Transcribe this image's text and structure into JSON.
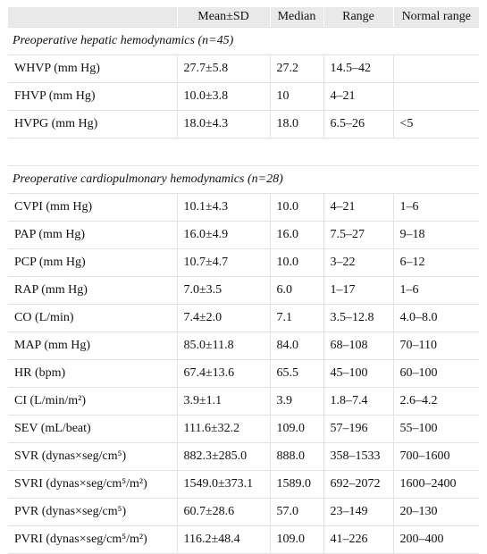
{
  "table": {
    "header": [
      "Mean±SD",
      "Median",
      "Range",
      "Normal range"
    ],
    "sections": [
      {
        "title": "Preoperative hepatic hemodynamics (n=45)",
        "rows": [
          [
            "WHVP (mm Hg)",
            "27.7±5.8",
            "27.2",
            "14.5–42"
          ],
          [
            "FHVP (mm Hg)",
            "10.0±3.8",
            "10",
            "4–21"
          ],
          [
            "HVPG (mm Hg)",
            "18.0±4.3",
            "18.0",
            "6.5–26",
            "<5"
          ]
        ]
      },
      {
        "title": "Preoperative cardiopulmonary hemodynamics (n=28)",
        "rows": [
          [
            "CVPI (mm Hg)",
            "10.1±4.3",
            "10.0",
            "4–21",
            "1–6"
          ],
          [
            "PAP (mm Hg)",
            "16.0±4.9",
            "16.0",
            "7.5–27",
            "9–18"
          ],
          [
            "PCP (mm Hg)",
            "10.7±4.7",
            "10.0",
            "3–22",
            "6–12"
          ],
          [
            "RAP (mm Hg)",
            "7.0±3.5",
            "6.0",
            "1–17",
            "1–6"
          ],
          [
            "CO (L/min)",
            "7.4±2.0",
            "7.1",
            "3.5–12.8",
            "4.0–8.0"
          ],
          [
            "MAP (mm Hg)",
            "85.0±11.8",
            "84.0",
            "68–108",
            "70–110"
          ],
          [
            "HR (bpm)",
            "67.4±13.6",
            "65.5",
            "45–100",
            "60–100"
          ],
          [
            "CI (L/min/m²)",
            "3.9±1.1",
            "3.9",
            "1.8–7.4",
            "2.6–4.2"
          ],
          [
            "SEV (mL/beat)",
            "111.6±32.2",
            "109.0",
            "57–196",
            "55–100"
          ],
          [
            "SVR (dynas×seg/cm⁵)",
            "882.3±285.0",
            "888.0",
            "358–1533",
            "700–1600"
          ],
          [
            "SVRI (dynas×seg/cm⁵/m²)",
            "1549.0±373.1",
            "1589.0",
            "692–2072",
            "1600–2400"
          ],
          [
            "PVR (dynas×seg/cm⁵)",
            "60.7±28.6",
            "57.0",
            "23–149",
            "20–130"
          ],
          [
            "PVRI (dynas×seg/cm⁵/m²)",
            "116.2±48.4",
            "109.0",
            "41–226",
            "200–400"
          ]
        ]
      }
    ]
  }
}
